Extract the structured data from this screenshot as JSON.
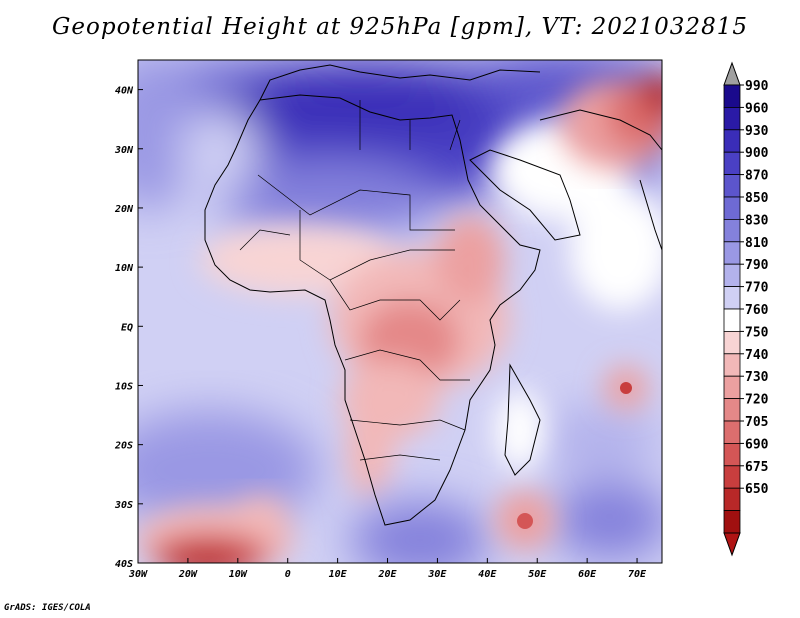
{
  "title": "Geopotential Height at 925hPa [gpm], VT: 2021032815",
  "credit": "GrADS: IGES/COLA",
  "map": {
    "lon_range": [
      -30,
      75
    ],
    "lat_range": [
      -40,
      45
    ],
    "x_ticks": [
      "30W",
      "20W",
      "10W",
      "0",
      "10E",
      "20E",
      "30E",
      "40E",
      "50E",
      "60E",
      "70E"
    ],
    "y_ticks": [
      "40N",
      "30N",
      "20N",
      "10N",
      "EQ",
      "10S",
      "20S",
      "30S",
      "40S"
    ]
  },
  "colorbar": {
    "levels": [
      "990",
      "960",
      "930",
      "900",
      "870",
      "850",
      "830",
      "810",
      "790",
      "770",
      "760",
      "750",
      "740",
      "730",
      "720",
      "705",
      "690",
      "675",
      "650"
    ],
    "colors": [
      "#1a0a8c",
      "#2a1aa6",
      "#3a2db8",
      "#4a40c4",
      "#5c55cc",
      "#6e6ad4",
      "#8481dc",
      "#9a98e4",
      "#b3b2ec",
      "#d0d0f4",
      "#ffffff",
      "#f8d4d4",
      "#f2b8b8",
      "#eca0a0",
      "#e48888",
      "#dc6e6e",
      "#d45656",
      "#c83e3e",
      "#b82828",
      "#a01010"
    ],
    "top_arrow_color": "#a0a0a0",
    "bottom_arrow_color": "#b01414"
  }
}
